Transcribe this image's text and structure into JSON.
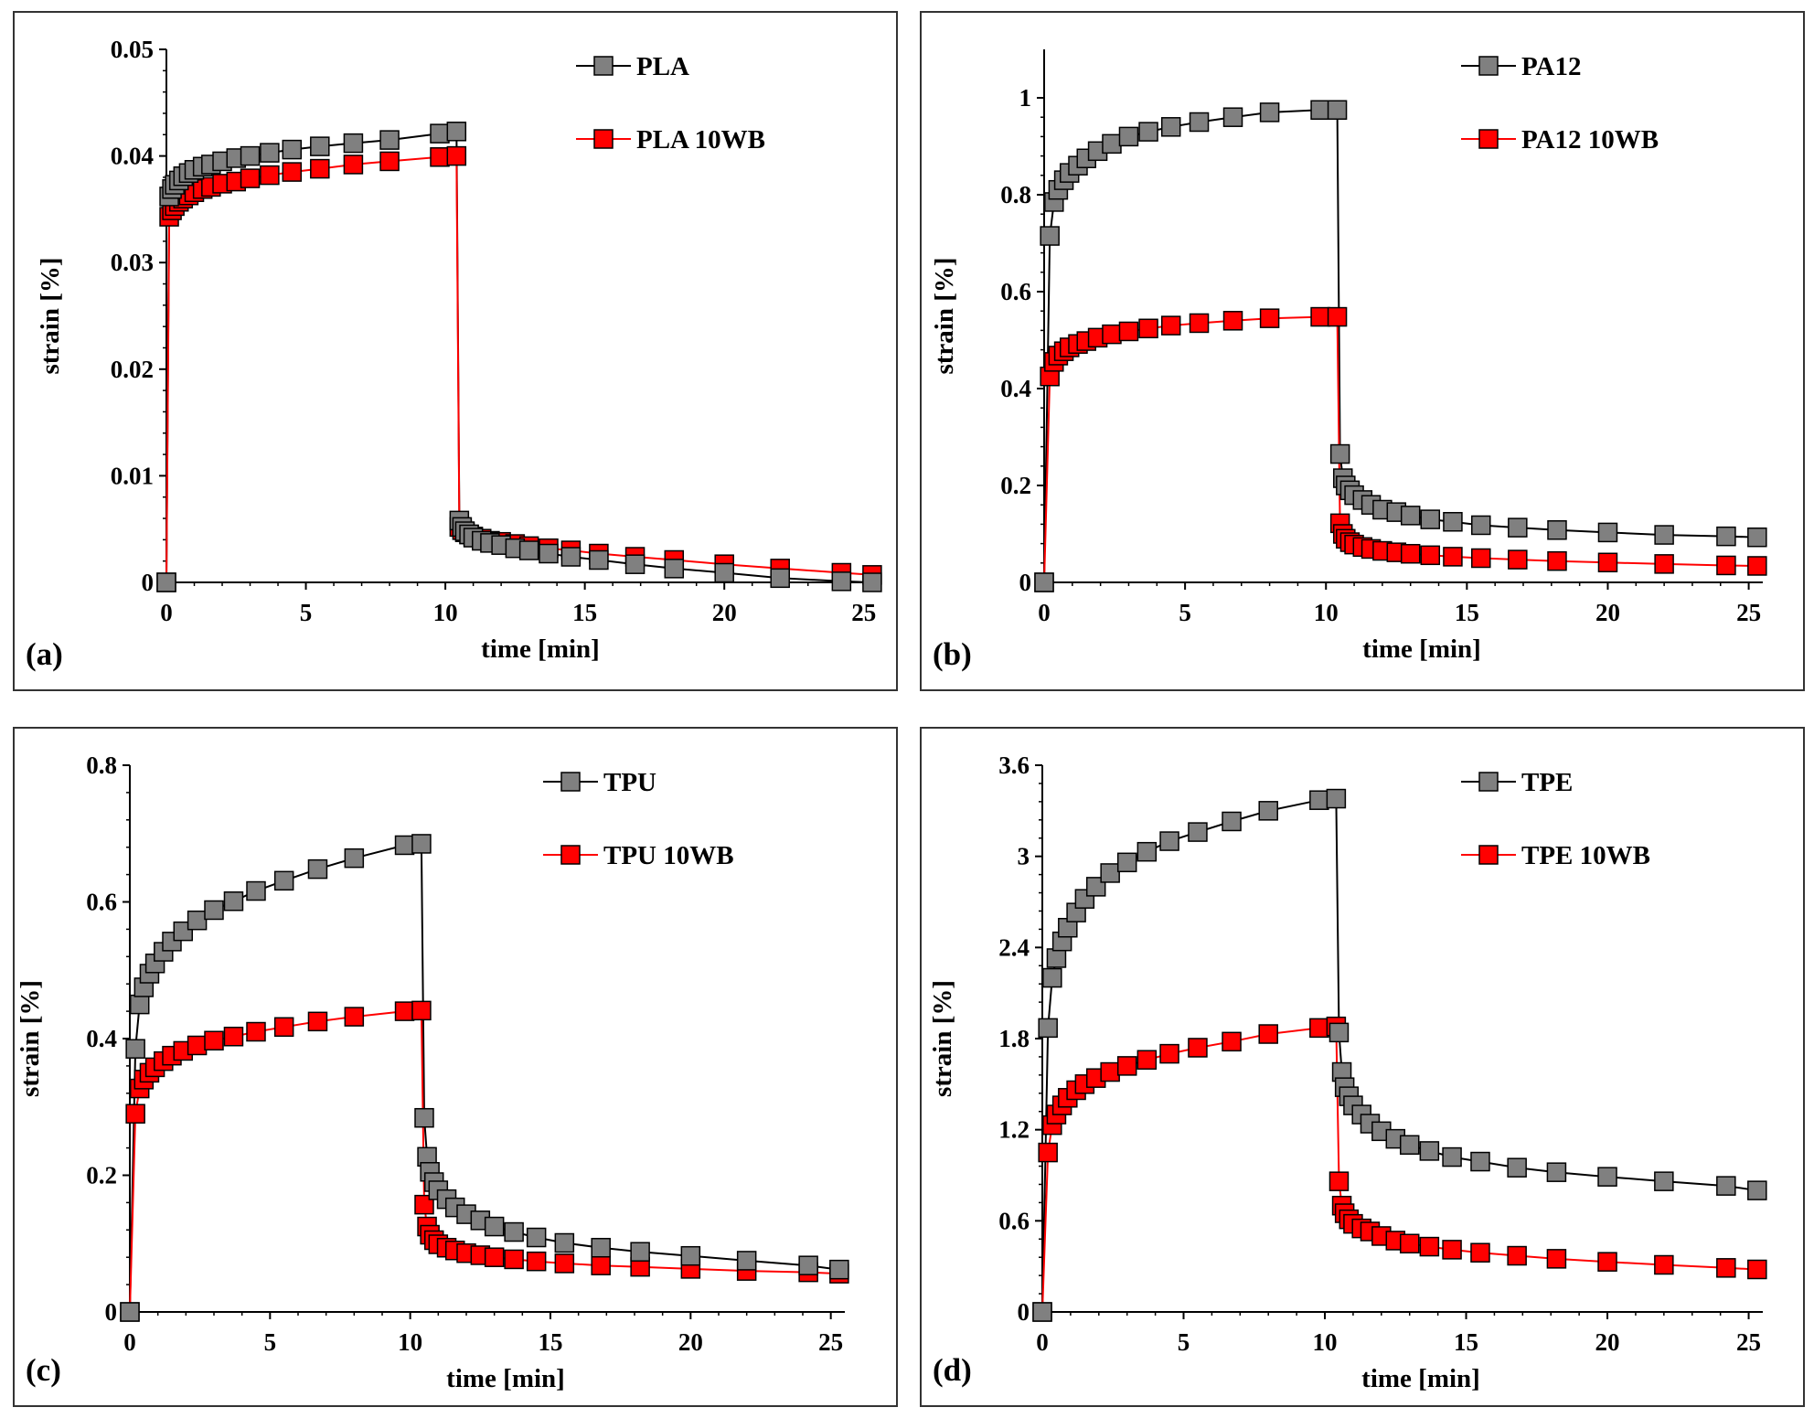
{
  "colors": {
    "series_a": "#808080",
    "series_b": "#ff0000",
    "axis": "#000000",
    "frame": "#333333"
  },
  "marker_shape": "square",
  "chart_data": [
    {
      "type": "line",
      "panel_label": "(a)",
      "xlabel": "time [min]",
      "ylabel": "strain [%]",
      "xlim": [
        0,
        25.5
      ],
      "ylim": [
        0,
        0.05
      ],
      "xticks": [
        0,
        5,
        10,
        15,
        20,
        25
      ],
      "yticks": [
        0,
        0.01,
        0.02,
        0.03,
        0.04,
        0.05
      ],
      "xtick_labels": [
        "0",
        "5",
        "10",
        "15",
        "20",
        "25"
      ],
      "ytick_labels": [
        "0",
        "0.01",
        "0.02",
        "0.03",
        "0.04",
        "0.05"
      ],
      "legend_position": "top-right",
      "series": [
        {
          "name": "PLA",
          "color": "#808080",
          "x": [
            0,
            0.1,
            0.2,
            0.3,
            0.45,
            0.6,
            0.8,
            1.0,
            1.3,
            1.6,
            2.0,
            2.5,
            3.0,
            3.7,
            4.5,
            5.5,
            6.7,
            8.0,
            9.8,
            10.4,
            10.5,
            10.6,
            10.7,
            10.85,
            11.0,
            11.3,
            11.6,
            12.0,
            12.5,
            13.0,
            13.7,
            14.5,
            15.5,
            16.8,
            18.2,
            20.0,
            22.0,
            24.2,
            25.3
          ],
          "y": [
            0,
            0.0362,
            0.0369,
            0.0373,
            0.0377,
            0.0381,
            0.0384,
            0.0387,
            0.039,
            0.0392,
            0.0395,
            0.0398,
            0.04,
            0.0403,
            0.0406,
            0.0409,
            0.0412,
            0.0415,
            0.0421,
            0.0423,
            0.0058,
            0.0052,
            0.0048,
            0.0045,
            0.0042,
            0.0039,
            0.0037,
            0.0035,
            0.0032,
            0.003,
            0.0027,
            0.0024,
            0.0021,
            0.0017,
            0.0013,
            0.0009,
            0.0004,
            0.0001,
            0.0
          ]
        },
        {
          "name": "PLA 10WB",
          "color": "#ff0000",
          "x": [
            0,
            0.1,
            0.2,
            0.3,
            0.45,
            0.6,
            0.8,
            1.0,
            1.3,
            1.6,
            2.0,
            2.5,
            3.0,
            3.7,
            4.5,
            5.5,
            6.7,
            8.0,
            9.8,
            10.4,
            10.5,
            10.6,
            10.7,
            10.85,
            11.0,
            11.3,
            11.6,
            12.0,
            12.5,
            13.0,
            13.7,
            14.5,
            15.5,
            16.8,
            18.2,
            20.0,
            22.0,
            24.2,
            25.3
          ],
          "y": [
            0,
            0.0343,
            0.0349,
            0.0353,
            0.0357,
            0.036,
            0.0363,
            0.0366,
            0.0369,
            0.0371,
            0.0374,
            0.0376,
            0.0379,
            0.0382,
            0.0385,
            0.0388,
            0.0392,
            0.0395,
            0.0399,
            0.04,
            0.0052,
            0.0049,
            0.0047,
            0.0045,
            0.0043,
            0.0041,
            0.0039,
            0.0038,
            0.0036,
            0.0034,
            0.0032,
            0.003,
            0.0027,
            0.0024,
            0.0021,
            0.0017,
            0.0013,
            0.0009,
            0.0007
          ]
        }
      ]
    },
    {
      "type": "line",
      "panel_label": "(b)",
      "xlabel": "time [min]",
      "ylabel": "strain [%]",
      "xlim": [
        0,
        25.5
      ],
      "ylim": [
        0,
        1.1
      ],
      "xticks": [
        0,
        5,
        10,
        15,
        20,
        25
      ],
      "yticks": [
        0,
        0.2,
        0.4,
        0.6,
        0.8,
        1.0
      ],
      "xtick_labels": [
        "0",
        "5",
        "10",
        "15",
        "20",
        "25"
      ],
      "ytick_labels": [
        "0",
        "0.2",
        "0.4",
        "0.6",
        "0.8",
        "1"
      ],
      "legend_position": "top-right",
      "series": [
        {
          "name": "PA12",
          "color": "#808080",
          "x": [
            0,
            0.2,
            0.35,
            0.5,
            0.7,
            0.9,
            1.2,
            1.5,
            1.9,
            2.4,
            3.0,
            3.7,
            4.5,
            5.5,
            6.7,
            8.0,
            9.8,
            10.4,
            10.5,
            10.6,
            10.7,
            10.85,
            11.0,
            11.3,
            11.6,
            12.0,
            12.5,
            13.0,
            13.7,
            14.5,
            15.5,
            16.8,
            18.2,
            20.0,
            22.0,
            24.2,
            25.3
          ],
          "y": [
            0,
            0.715,
            0.785,
            0.81,
            0.83,
            0.845,
            0.86,
            0.875,
            0.89,
            0.905,
            0.92,
            0.93,
            0.94,
            0.95,
            0.96,
            0.97,
            0.975,
            0.975,
            0.265,
            0.215,
            0.2,
            0.19,
            0.18,
            0.17,
            0.16,
            0.15,
            0.145,
            0.138,
            0.13,
            0.125,
            0.118,
            0.113,
            0.108,
            0.103,
            0.098,
            0.095,
            0.093
          ]
        },
        {
          "name": "PA12 10WB",
          "color": "#ff0000",
          "x": [
            0,
            0.2,
            0.35,
            0.5,
            0.7,
            0.9,
            1.2,
            1.5,
            1.9,
            2.4,
            3.0,
            3.7,
            4.5,
            5.5,
            6.7,
            8.0,
            9.8,
            10.4,
            10.5,
            10.6,
            10.7,
            10.85,
            11.0,
            11.3,
            11.6,
            12.0,
            12.5,
            13.0,
            13.7,
            14.5,
            15.5,
            16.8,
            18.2,
            20.0,
            22.0,
            24.2,
            25.3
          ],
          "y": [
            0,
            0.425,
            0.455,
            0.468,
            0.477,
            0.485,
            0.492,
            0.498,
            0.505,
            0.512,
            0.518,
            0.524,
            0.53,
            0.535,
            0.54,
            0.545,
            0.548,
            0.548,
            0.122,
            0.1,
            0.09,
            0.083,
            0.078,
            0.073,
            0.069,
            0.065,
            0.062,
            0.059,
            0.056,
            0.053,
            0.05,
            0.047,
            0.044,
            0.041,
            0.038,
            0.035,
            0.034
          ]
        }
      ]
    },
    {
      "type": "line",
      "panel_label": "(c)",
      "xlabel": "time [min]",
      "ylabel": "strain [%]",
      "xlim": [
        0,
        25.5
      ],
      "ylim": [
        0,
        0.8
      ],
      "xticks": [
        0,
        5,
        10,
        15,
        20,
        25
      ],
      "yticks": [
        0,
        0.2,
        0.4,
        0.6,
        0.8
      ],
      "xtick_labels": [
        "0",
        "5",
        "10",
        "15",
        "20",
        "25"
      ],
      "ytick_labels": [
        "0",
        "0.2",
        "0.4",
        "0.6",
        "0.8"
      ],
      "legend_position": "top-right",
      "series": [
        {
          "name": "TPU",
          "color": "#808080",
          "x": [
            0,
            0.2,
            0.35,
            0.5,
            0.7,
            0.9,
            1.2,
            1.5,
            1.9,
            2.4,
            3.0,
            3.7,
            4.5,
            5.5,
            6.7,
            8.0,
            9.8,
            10.4,
            10.5,
            10.6,
            10.7,
            10.85,
            11.0,
            11.3,
            11.6,
            12.0,
            12.5,
            13.0,
            13.7,
            14.5,
            15.5,
            16.8,
            18.2,
            20.0,
            22.0,
            24.2,
            25.3
          ],
          "y": [
            0,
            0.385,
            0.45,
            0.475,
            0.495,
            0.51,
            0.527,
            0.542,
            0.557,
            0.573,
            0.588,
            0.601,
            0.616,
            0.631,
            0.648,
            0.664,
            0.683,
            0.685,
            0.284,
            0.227,
            0.205,
            0.19,
            0.178,
            0.165,
            0.153,
            0.143,
            0.134,
            0.125,
            0.117,
            0.109,
            0.101,
            0.094,
            0.088,
            0.082,
            0.075,
            0.068,
            0.062
          ]
        },
        {
          "name": "TPU 10WB",
          "color": "#ff0000",
          "x": [
            0,
            0.2,
            0.35,
            0.5,
            0.7,
            0.9,
            1.2,
            1.5,
            1.9,
            2.4,
            3.0,
            3.7,
            4.5,
            5.5,
            6.7,
            8.0,
            9.8,
            10.4,
            10.5,
            10.6,
            10.7,
            10.85,
            11.0,
            11.3,
            11.6,
            12.0,
            12.5,
            13.0,
            13.7,
            14.5,
            15.5,
            16.8,
            18.2,
            20.0,
            22.0,
            24.2,
            25.3
          ],
          "y": [
            0,
            0.29,
            0.327,
            0.34,
            0.35,
            0.358,
            0.367,
            0.375,
            0.382,
            0.39,
            0.397,
            0.403,
            0.41,
            0.417,
            0.425,
            0.432,
            0.44,
            0.441,
            0.157,
            0.125,
            0.113,
            0.105,
            0.099,
            0.094,
            0.09,
            0.086,
            0.083,
            0.08,
            0.077,
            0.074,
            0.071,
            0.068,
            0.066,
            0.063,
            0.06,
            0.058,
            0.056
          ]
        }
      ]
    },
    {
      "type": "line",
      "panel_label": "(d)",
      "xlabel": "time [min]",
      "ylabel": "strain [%]",
      "xlim": [
        0,
        25.5
      ],
      "ylim": [
        0,
        3.6
      ],
      "xticks": [
        0,
        5,
        10,
        15,
        20,
        25
      ],
      "yticks": [
        0,
        0.6,
        1.2,
        1.8,
        2.4,
        3.0,
        3.6
      ],
      "xtick_labels": [
        "0",
        "5",
        "10",
        "15",
        "20",
        "25"
      ],
      "ytick_labels": [
        "0",
        "0.6",
        "1.2",
        "1.8",
        "2.4",
        "3",
        "3.6"
      ],
      "legend_position": "top-right",
      "series": [
        {
          "name": "TPE",
          "color": "#808080",
          "x": [
            0,
            0.2,
            0.35,
            0.5,
            0.7,
            0.9,
            1.2,
            1.5,
            1.9,
            2.4,
            3.0,
            3.7,
            4.5,
            5.5,
            6.7,
            8.0,
            9.8,
            10.4,
            10.5,
            10.6,
            10.7,
            10.85,
            11.0,
            11.3,
            11.6,
            12.0,
            12.5,
            13.0,
            13.7,
            14.5,
            15.5,
            16.8,
            18.2,
            20.0,
            22.0,
            24.2,
            25.3
          ],
          "y": [
            0,
            1.87,
            2.2,
            2.33,
            2.44,
            2.53,
            2.63,
            2.72,
            2.8,
            2.89,
            2.96,
            3.03,
            3.1,
            3.16,
            3.23,
            3.3,
            3.37,
            3.38,
            1.84,
            1.58,
            1.48,
            1.42,
            1.36,
            1.3,
            1.24,
            1.19,
            1.14,
            1.1,
            1.06,
            1.02,
            0.99,
            0.95,
            0.92,
            0.89,
            0.86,
            0.83,
            0.8
          ]
        },
        {
          "name": "TPE 10WB",
          "color": "#ff0000",
          "x": [
            0,
            0.2,
            0.35,
            0.5,
            0.7,
            0.9,
            1.2,
            1.5,
            1.9,
            2.4,
            3.0,
            3.7,
            4.5,
            5.5,
            6.7,
            8.0,
            9.8,
            10.4,
            10.5,
            10.6,
            10.7,
            10.85,
            11.0,
            11.3,
            11.6,
            12.0,
            12.5,
            13.0,
            13.7,
            14.5,
            15.5,
            16.8,
            18.2,
            20.0,
            22.0,
            24.2,
            25.3
          ],
          "y": [
            0,
            1.05,
            1.23,
            1.3,
            1.36,
            1.41,
            1.46,
            1.5,
            1.54,
            1.58,
            1.62,
            1.66,
            1.7,
            1.74,
            1.78,
            1.83,
            1.87,
            1.88,
            0.86,
            0.7,
            0.65,
            0.61,
            0.58,
            0.55,
            0.53,
            0.5,
            0.47,
            0.45,
            0.43,
            0.41,
            0.39,
            0.37,
            0.35,
            0.33,
            0.31,
            0.29,
            0.28
          ]
        }
      ]
    }
  ]
}
